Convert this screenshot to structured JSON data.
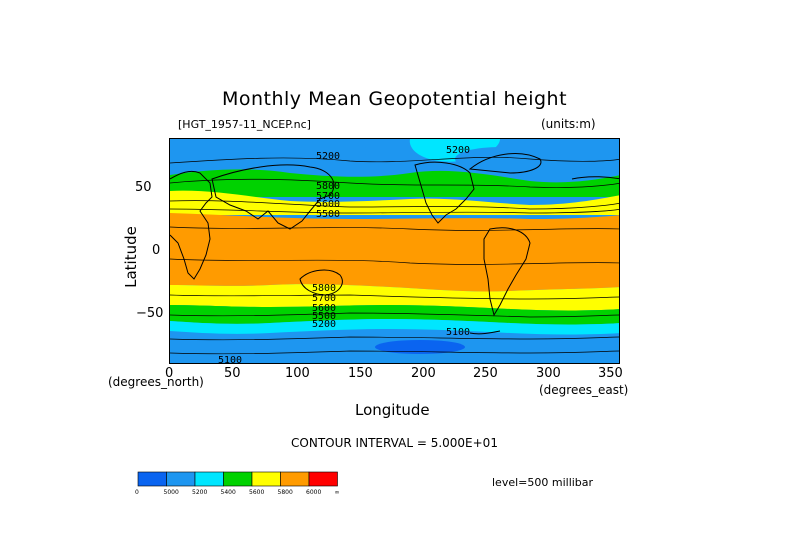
{
  "title": "Monthly Mean Geopotential height",
  "file_label": "[HGT_1957-11_NCEP.nc]",
  "units_label": "(units:m)",
  "x_axis": {
    "label": "Longitude",
    "unit": "(degrees_east)",
    "ticks": [
      "0",
      "50",
      "100",
      "150",
      "200",
      "250",
      "300",
      "350"
    ],
    "range": [
      0,
      357.5
    ]
  },
  "y_axis": {
    "label": "Latitude",
    "unit": "(degrees_north)",
    "ticks": [
      "50",
      "0",
      "−50"
    ],
    "range": [
      -90,
      90
    ]
  },
  "contour_interval": "CONTOUR INTERVAL = 5.000E+01",
  "level": "level=500 millibar",
  "contour_labels": [
    "5200",
    "5200",
    "5800",
    "5700",
    "5600",
    "5500",
    "5800",
    "5700",
    "5600",
    "5500",
    "5200",
    "5100",
    "5100"
  ],
  "colorbar": {
    "colors": [
      "#0a64f0",
      "#1e96f0",
      "#00e6ff",
      "#00d200",
      "#ffff00",
      "#ff9b00",
      "#ff0000"
    ],
    "labels": [
      "0",
      "5000",
      "5200",
      "5400",
      "5600",
      "5800",
      "6000",
      "∞"
    ]
  },
  "map_colors": {
    "land_outline": "#000000",
    "contour_line": "#000000"
  }
}
